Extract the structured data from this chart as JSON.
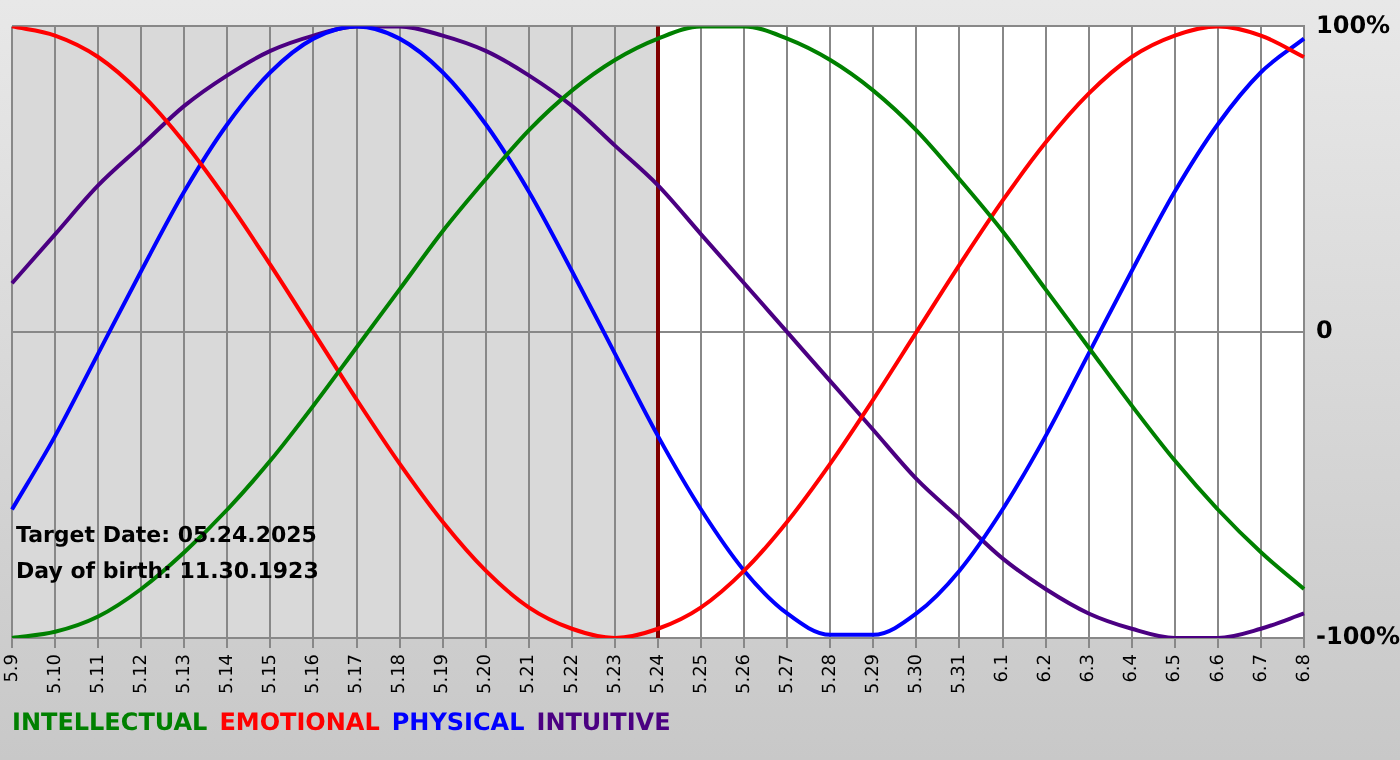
{
  "chart_data": {
    "type": "line",
    "categories": [
      "5.9",
      "5.10",
      "5.11",
      "5.12",
      "5.13",
      "5.14",
      "5.15",
      "5.16",
      "5.17",
      "5.18",
      "5.19",
      "5.20",
      "5.21",
      "5.22",
      "5.23",
      "5.24",
      "5.25",
      "5.26",
      "5.27",
      "5.28",
      "5.29",
      "5.30",
      "5.31",
      "6.1",
      "6.2",
      "6.3",
      "6.4",
      "6.5",
      "6.6",
      "6.7",
      "6.8"
    ],
    "series": [
      {
        "name": "INTELLECTUAL",
        "color": "#008000",
        "values": [
          -100,
          -98,
          -93,
          -84,
          -72,
          -58,
          -42,
          -24,
          -5,
          14,
          33,
          50,
          66,
          79,
          89,
          96,
          100,
          100,
          96,
          89,
          79,
          66,
          50,
          33,
          14,
          -5,
          -24,
          -42,
          -58,
          -72,
          -84
        ]
      },
      {
        "name": "EMOTIONAL",
        "color": "#ff0000",
        "values": [
          100,
          97,
          90,
          78,
          62,
          43,
          22,
          0,
          -22,
          -43,
          -62,
          -78,
          -90,
          -97,
          -100,
          -97,
          -90,
          -78,
          -62,
          -43,
          -22,
          0,
          22,
          43,
          62,
          78,
          90,
          97,
          100,
          97,
          90
        ]
      },
      {
        "name": "PHYSICAL",
        "color": "#0000ff",
        "values": [
          -58,
          -34,
          -7,
          20,
          46,
          68,
          85,
          96,
          100,
          96,
          85,
          68,
          46,
          20,
          -7,
          -34,
          -58,
          -78,
          -92,
          -99,
          -99,
          -92,
          -78,
          -58,
          -34,
          -7,
          20,
          46,
          68,
          85,
          96
        ]
      },
      {
        "name": "INTUITIVE",
        "color": "#4b0082",
        "values": [
          16,
          32,
          48,
          61,
          74,
          84,
          92,
          97,
          100,
          100,
          97,
          92,
          84,
          74,
          61,
          48,
          32,
          16,
          0,
          -16,
          -32,
          -48,
          -61,
          -74,
          -84,
          -92,
          -97,
          -100,
          -100,
          -97,
          -92
        ]
      }
    ],
    "ylim": [
      -100,
      100
    ],
    "yticks": [
      {
        "value": -100,
        "label": "-100%"
      },
      0,
      {
        "value": 100,
        "label": "100%"
      }
    ],
    "grid": true,
    "legend": "bottom",
    "marker": "none",
    "line_style": "solid",
    "ref_lines": [
      {
        "axis": "x",
        "value": "5.24",
        "color": "#800000"
      }
    ],
    "bands": [
      {
        "axis": "x",
        "from": "5.9",
        "to": "5.24",
        "color": "#d9d9d9"
      }
    ],
    "annotations": [
      "Target Date: 05.24.2025",
      "Day of birth: 11.30.1923"
    ]
  }
}
